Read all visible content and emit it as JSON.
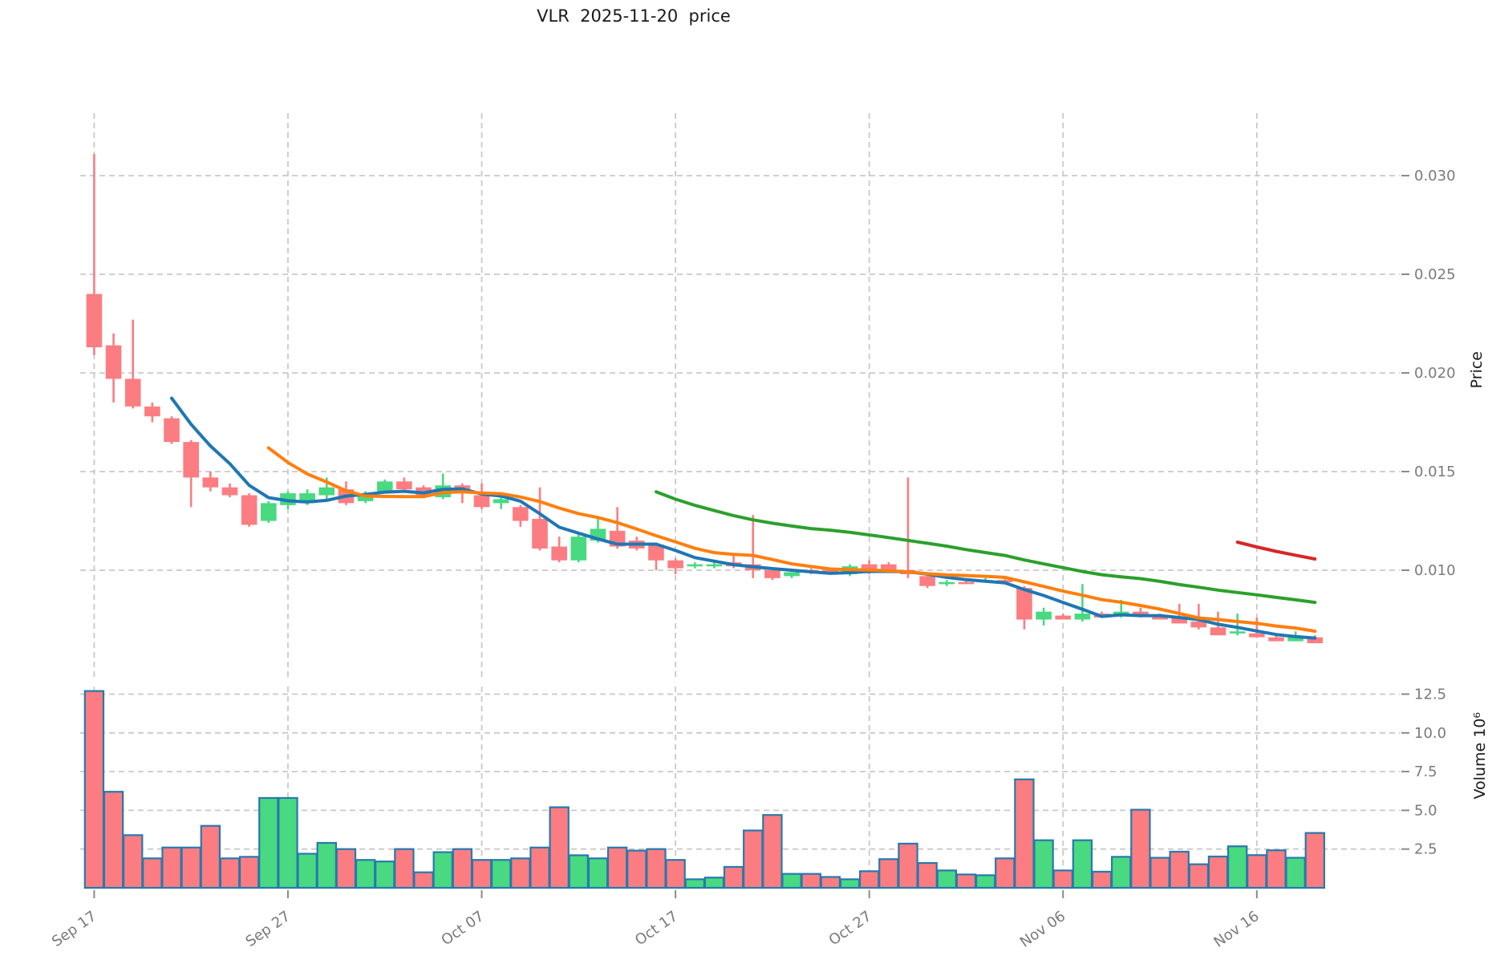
{
  "title": "VLR  2025-11-20  price",
  "price_axis": {
    "label": "Price",
    "tick_labels": [
      "0.030",
      "0.025",
      "0.020",
      "0.015",
      "0.010"
    ],
    "tick_values": [
      0.03,
      0.025,
      0.02,
      0.015,
      0.01
    ]
  },
  "volume_axis": {
    "label": "Volume 10⁶",
    "tick_labels": [
      "12.5",
      "10.0",
      "7.5",
      "5.0",
      "2.5"
    ],
    "tick_values": [
      12.5,
      10.0,
      7.5,
      5.0,
      2.5
    ]
  },
  "x_axis": {
    "tick_labels": [
      "Sep 17",
      "Sep 27",
      "Oct 07",
      "Oct 17",
      "Oct 27",
      "Nov 06",
      "Nov 16"
    ],
    "tick_indices": [
      0,
      10,
      20,
      30,
      40,
      50,
      60
    ]
  },
  "colors": {
    "up": "#48d981",
    "down": "#fc7d81",
    "volume_outline": "#2779ae",
    "grid": "#c9c9c9",
    "tick_text": "#7a7a7a",
    "sma5": "#1f77b4",
    "sma10": "#ff7f0e",
    "sma30": "#2ca02c",
    "sma60": "#d62728",
    "background": "#ffffff"
  },
  "chart_data": {
    "type": "candlestick+volume",
    "title": "VLR  2025-11-20  price",
    "ylabel": "Price",
    "ylabel2": "Volume 10⁶",
    "price_ylim": [
      0.0058,
      0.0332
    ],
    "volume_ylim": [
      0,
      13.0
    ],
    "grid": "dashed",
    "dates": [
      "Sep 17",
      "Sep 18",
      "Sep 19",
      "Sep 20",
      "Sep 21",
      "Sep 22",
      "Sep 23",
      "Sep 24",
      "Sep 25",
      "Sep 26",
      "Sep 27",
      "Sep 28",
      "Sep 29",
      "Sep 30",
      "Oct 01",
      "Oct 02",
      "Oct 03",
      "Oct 04",
      "Oct 05",
      "Oct 06",
      "Oct 07",
      "Oct 08",
      "Oct 09",
      "Oct 10",
      "Oct 11",
      "Oct 12",
      "Oct 13",
      "Oct 14",
      "Oct 15",
      "Oct 16",
      "Oct 17",
      "Oct 18",
      "Oct 19",
      "Oct 20",
      "Oct 21",
      "Oct 22",
      "Oct 23",
      "Oct 24",
      "Oct 25",
      "Oct 26",
      "Oct 27",
      "Oct 28",
      "Oct 29",
      "Oct 30",
      "Oct 31",
      "Nov 01",
      "Nov 02",
      "Nov 03",
      "Nov 04",
      "Nov 05",
      "Nov 06",
      "Nov 07",
      "Nov 08",
      "Nov 09",
      "Nov 10",
      "Nov 11",
      "Nov 12",
      "Nov 13",
      "Nov 14",
      "Nov 15",
      "Nov 16",
      "Nov 17",
      "Nov 18",
      "Nov 19"
    ],
    "open": [
      0.024,
      0.0214,
      0.0197,
      0.0183,
      0.0177,
      0.0165,
      0.0147,
      0.0142,
      0.0138,
      0.0125,
      0.0133,
      0.0134,
      0.0138,
      0.0141,
      0.0135,
      0.014,
      0.0145,
      0.0142,
      0.0137,
      0.0143,
      0.0138,
      0.0134,
      0.0132,
      0.0126,
      0.0112,
      0.0105,
      0.0115,
      0.012,
      0.0115,
      0.0113,
      0.0105,
      0.0102,
      0.0102,
      0.0104,
      0.0103,
      0.01,
      0.0097,
      0.01,
      0.01,
      0.0098,
      0.0103,
      0.0103,
      0.01,
      0.0097,
      0.0093,
      0.0094,
      0.0094,
      0.0095,
      0.0091,
      0.0075,
      0.0077,
      0.0075,
      0.0078,
      0.0077,
      0.0079,
      0.0077,
      0.0076,
      0.0074,
      0.0071,
      0.0068,
      0.0068,
      0.0066,
      0.0064,
      0.0066
    ],
    "high": [
      0.0311,
      0.022,
      0.0227,
      0.0185,
      0.0178,
      0.0166,
      0.015,
      0.0144,
      0.0139,
      0.0135,
      0.014,
      0.0141,
      0.0147,
      0.0145,
      0.014,
      0.0146,
      0.0147,
      0.0143,
      0.0149,
      0.0144,
      0.0144,
      0.0139,
      0.0133,
      0.0142,
      0.0117,
      0.0119,
      0.0126,
      0.0132,
      0.0117,
      0.0114,
      0.0106,
      0.0104,
      0.0104,
      0.0108,
      0.0128,
      0.0101,
      0.0099,
      0.0101,
      0.0101,
      0.0103,
      0.0105,
      0.0104,
      0.0147,
      0.0098,
      0.0095,
      0.0095,
      0.0096,
      0.0096,
      0.0092,
      0.0081,
      0.0078,
      0.0093,
      0.0079,
      0.0085,
      0.0081,
      0.0078,
      0.0083,
      0.0083,
      0.0079,
      0.0078,
      0.0076,
      0.0067,
      0.0069,
      0.0067
    ],
    "low": [
      0.0209,
      0.0185,
      0.0182,
      0.0175,
      0.0164,
      0.0132,
      0.014,
      0.0137,
      0.0122,
      0.0124,
      0.0131,
      0.0133,
      0.0136,
      0.0133,
      0.0134,
      0.0139,
      0.014,
      0.0137,
      0.0136,
      0.0134,
      0.0131,
      0.0131,
      0.0122,
      0.011,
      0.0104,
      0.0104,
      0.0114,
      0.0111,
      0.011,
      0.01,
      0.0098,
      0.0101,
      0.0101,
      0.0101,
      0.0096,
      0.0095,
      0.0096,
      0.0098,
      0.0098,
      0.0097,
      0.0098,
      0.0099,
      0.0096,
      0.0091,
      0.0092,
      0.0093,
      0.0094,
      0.0093,
      0.007,
      0.0072,
      0.0075,
      0.0074,
      0.0076,
      0.0076,
      0.0076,
      0.0075,
      0.0073,
      0.007,
      0.0067,
      0.0067,
      0.0066,
      0.0064,
      0.0064,
      0.0063
    ],
    "close": [
      0.0213,
      0.0197,
      0.0183,
      0.0178,
      0.0165,
      0.0147,
      0.0142,
      0.0138,
      0.0123,
      0.0134,
      0.0139,
      0.0139,
      0.0142,
      0.0134,
      0.0138,
      0.0145,
      0.0141,
      0.0138,
      0.0143,
      0.0139,
      0.0132,
      0.0136,
      0.0125,
      0.0111,
      0.0105,
      0.0117,
      0.0121,
      0.0112,
      0.0111,
      0.0105,
      0.0101,
      0.0103,
      0.0103,
      0.0102,
      0.01,
      0.0096,
      0.0099,
      0.0099,
      0.0098,
      0.0102,
      0.0099,
      0.0099,
      0.0098,
      0.0092,
      0.0094,
      0.0093,
      0.0095,
      0.0094,
      0.0075,
      0.0079,
      0.0075,
      0.0078,
      0.0076,
      0.0079,
      0.0077,
      0.0075,
      0.0073,
      0.0071,
      0.0067,
      0.0069,
      0.0066,
      0.0064,
      0.0066,
      0.0063
    ],
    "volume_millions": [
      12.7,
      6.2,
      3.4,
      1.9,
      2.6,
      2.6,
      4.0,
      1.9,
      2.0,
      5.8,
      5.8,
      2.2,
      2.9,
      2.5,
      1.8,
      1.7,
      2.5,
      1.0,
      2.3,
      2.5,
      1.8,
      1.8,
      1.9,
      2.6,
      5.2,
      2.1,
      1.9,
      2.6,
      2.4,
      2.5,
      1.8,
      0.55,
      0.66,
      1.35,
      3.7,
      4.7,
      0.9,
      0.9,
      0.7,
      0.55,
      1.07,
      1.85,
      2.85,
      1.6,
      1.12,
      0.86,
      0.81,
      1.9,
      7.0,
      3.07,
      1.12,
      3.07,
      1.04,
      2.0,
      5.04,
      1.94,
      2.33,
      1.52,
      2.02,
      2.68,
      2.11,
      2.42,
      1.94,
      3.54
    ],
    "moving_averages": [
      {
        "name": "SMA5",
        "window": 5,
        "color_key": "sma5"
      },
      {
        "name": "SMA10",
        "window": 10,
        "color_key": "sma10"
      },
      {
        "name": "SMA30",
        "window": 30,
        "color_key": "sma30"
      },
      {
        "name": "SMA60",
        "window": 60,
        "color_key": "sma60"
      }
    ],
    "legend_position": "none"
  }
}
